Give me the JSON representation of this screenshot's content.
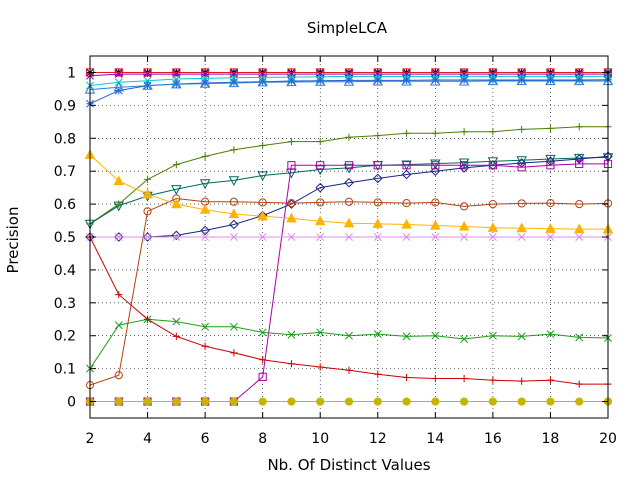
{
  "chart_data": {
    "type": "line",
    "title": "SimpleLCA",
    "xlabel": "Nb. Of Distinct Values",
    "ylabel": "Precision",
    "xlim": [
      2,
      20
    ],
    "ylim": [
      -0.05,
      1.05
    ],
    "xticks": [
      "2",
      "4",
      "6",
      "8",
      "10",
      "12",
      "14",
      "16",
      "18",
      "20"
    ],
    "yticks": [
      "0",
      "0.1",
      "0.2",
      "0.3",
      "0.4",
      "0.5",
      "0.6",
      "0.7",
      "0.8",
      "0.9",
      "1"
    ],
    "grid": true,
    "legend": "none",
    "x": [
      2,
      3,
      4,
      5,
      6,
      7,
      8,
      9,
      10,
      11,
      12,
      13,
      14,
      15,
      16,
      17,
      18,
      19,
      20
    ],
    "series": [
      {
        "color": "#000000",
        "marker": "plus",
        "values": [
          1,
          1,
          1,
          1,
          1,
          1,
          1,
          1,
          1,
          1,
          1,
          1,
          1,
          1,
          1,
          1,
          1,
          1,
          1
        ]
      },
      {
        "color": "#000000",
        "marker": "star",
        "values": [
          1,
          1,
          1,
          1,
          1,
          1,
          1,
          1,
          1,
          1,
          1,
          1,
          1,
          1,
          1,
          1,
          1,
          1,
          1
        ]
      },
      {
        "color": "#e31a1c",
        "marker": "square",
        "values": [
          1,
          1,
          1,
          1,
          1,
          1,
          1,
          1,
          1,
          1,
          1,
          1,
          1,
          1,
          1,
          1,
          1,
          1,
          1
        ]
      },
      {
        "color": "#9900cc",
        "marker": "x",
        "values": [
          0.99,
          0.995,
          0.995,
          0.995,
          0.995,
          0.995,
          0.995,
          0.995,
          0.995,
          0.995,
          0.995,
          0.995,
          0.995,
          0.995,
          0.995,
          0.995,
          0.995,
          0.995,
          0.995
        ]
      },
      {
        "color": "#00cccc",
        "marker": "x",
        "values": [
          0.96,
          0.97,
          0.975,
          0.98,
          0.982,
          0.984,
          0.985,
          0.986,
          0.987,
          0.988,
          0.988,
          0.988,
          0.988,
          0.988,
          0.988,
          0.988,
          0.988,
          0.988,
          0.988
        ]
      },
      {
        "color": "#1f5fd6",
        "marker": "star",
        "values": [
          0.905,
          0.945,
          0.96,
          0.965,
          0.968,
          0.97,
          0.972,
          0.974,
          0.975,
          0.976,
          0.976,
          0.976,
          0.977,
          0.977,
          0.977,
          0.977,
          0.977,
          0.977,
          0.978
        ]
      },
      {
        "color": "#2a7fd4",
        "marker": "triangle-up",
        "values": [
          0.948,
          0.955,
          0.96,
          0.964,
          0.966,
          0.968,
          0.97,
          0.971,
          0.972,
          0.972,
          0.973,
          0.973,
          0.973,
          0.973,
          0.974,
          0.974,
          0.974,
          0.974,
          0.974
        ]
      },
      {
        "color": "#4d7f00",
        "marker": "plus",
        "values": [
          0.54,
          0.6,
          0.675,
          0.72,
          0.745,
          0.765,
          0.778,
          0.79,
          0.79,
          0.803,
          0.808,
          0.815,
          0.815,
          0.82,
          0.82,
          0.827,
          0.83,
          0.835,
          0.835
        ]
      },
      {
        "color": "#00695c",
        "marker": "triangle-down",
        "values": [
          0.54,
          0.595,
          0.625,
          0.645,
          0.663,
          0.672,
          0.687,
          0.695,
          0.705,
          0.71,
          0.718,
          0.72,
          0.723,
          0.726,
          0.73,
          0.733,
          0.737,
          0.74,
          0.742
        ]
      },
      {
        "color": "#1a237e",
        "marker": "diamond",
        "values": [
          0.5,
          0.5,
          0.5,
          0.505,
          0.52,
          0.538,
          0.565,
          0.6,
          0.65,
          0.665,
          0.678,
          0.69,
          0.7,
          0.71,
          0.718,
          0.725,
          0.73,
          0.737,
          0.745
        ]
      },
      {
        "color": "#aa00aa",
        "marker": "square",
        "values": [
          0,
          0,
          0,
          0,
          0,
          0,
          0.075,
          0.718,
          0.718,
          0.718,
          0.718,
          0.718,
          0.718,
          0.718,
          0.718,
          0.712,
          0.718,
          0.722,
          0.722
        ]
      },
      {
        "color": "#b7410e",
        "marker": "circle",
        "values": [
          0.05,
          0.08,
          0.578,
          0.617,
          0.607,
          0.607,
          0.605,
          0.603,
          0.605,
          0.607,
          0.605,
          0.603,
          0.605,
          0.593,
          0.6,
          0.602,
          0.603,
          0.6,
          0.602
        ]
      },
      {
        "color": "#ffb300",
        "marker": "triangle-up-filled",
        "values": [
          0.75,
          0.67,
          0.63,
          0.6,
          0.583,
          0.57,
          0.563,
          0.557,
          0.548,
          0.542,
          0.54,
          0.538,
          0.535,
          0.532,
          0.528,
          0.527,
          0.525,
          0.524,
          0.524
        ]
      },
      {
        "color": "#e08ce8",
        "marker": "x",
        "values": [
          0.5,
          0.5,
          0.5,
          0.5,
          0.5,
          0.5,
          0.5,
          0.5,
          0.5,
          0.5,
          0.5,
          0.5,
          0.5,
          0.5,
          0.5,
          0.5,
          0.5,
          0.5,
          0.5
        ]
      },
      {
        "color": "#1b9e1b",
        "marker": "x",
        "values": [
          0.1,
          0.232,
          0.25,
          0.243,
          0.227,
          0.227,
          0.21,
          0.203,
          0.21,
          0.2,
          0.205,
          0.198,
          0.2,
          0.19,
          0.2,
          0.198,
          0.205,
          0.195,
          0.193
        ]
      },
      {
        "color": "#cc0000",
        "marker": "plus",
        "values": [
          0.5,
          0.325,
          0.25,
          0.198,
          0.168,
          0.148,
          0.127,
          0.115,
          0.105,
          0.095,
          0.083,
          0.073,
          0.07,
          0.07,
          0.065,
          0.062,
          0.065,
          0.053,
          0.053
        ]
      },
      {
        "color": "#c8b400",
        "marker": "circle-filled",
        "values": [
          0,
          0,
          0,
          0,
          0,
          0,
          0,
          0,
          0,
          0,
          0,
          0,
          0,
          0,
          0,
          0,
          0,
          0,
          0
        ]
      }
    ]
  }
}
